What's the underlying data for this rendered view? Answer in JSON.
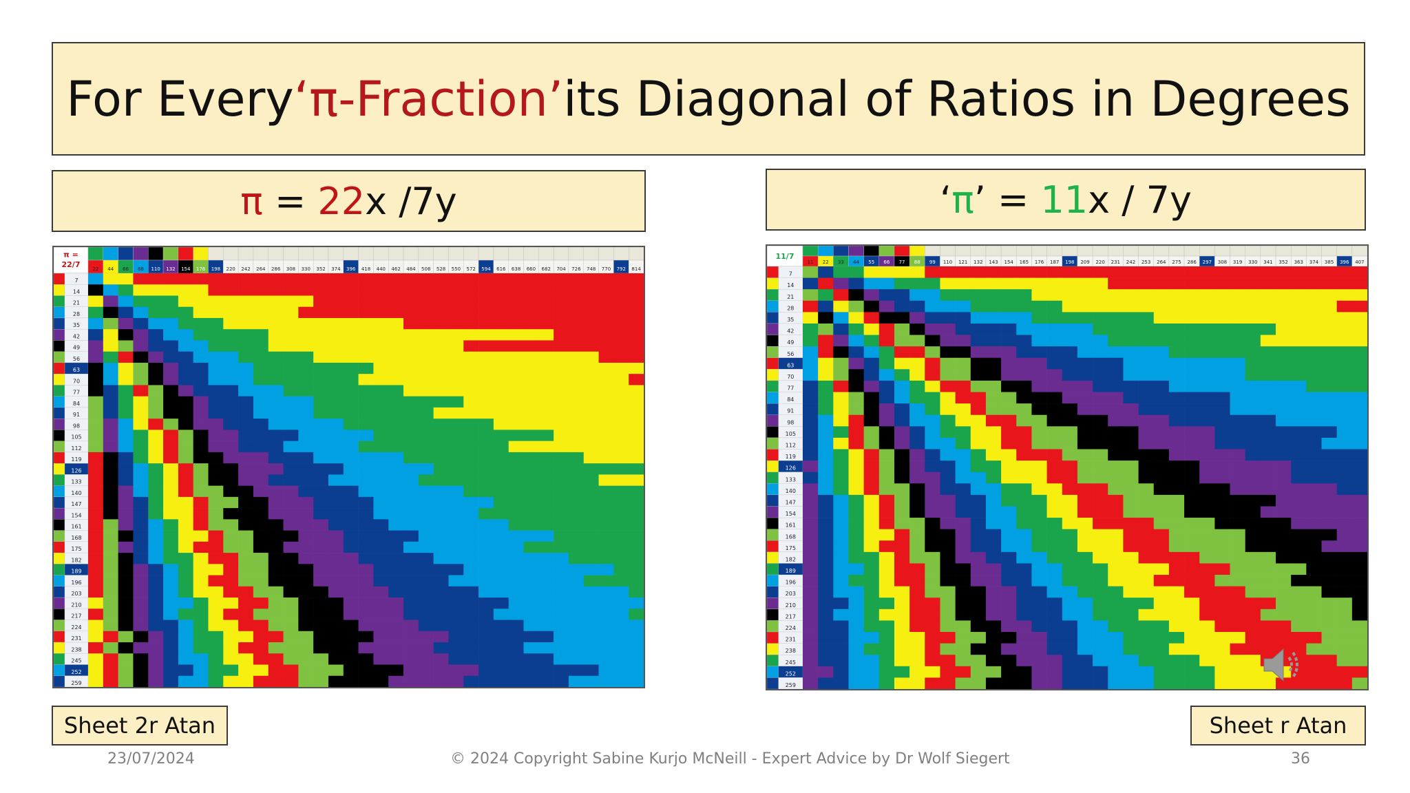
{
  "title": {
    "before": "For Every ",
    "highlight": "‘π-Fraction’",
    "after": " its Diagonal of Ratios in Degrees"
  },
  "left_panel": {
    "heading": {
      "pi": "π",
      "eq": " = ",
      "num": "22",
      "rest": "x /7y"
    },
    "sheet_label": "Sheet 2r Atan",
    "corner_top": "π =",
    "corner_bottom": "22/7",
    "top_numbers": [
      "22",
      "44",
      "66",
      "88",
      "110",
      "132",
      "154",
      "176",
      "198",
      "220",
      "242",
      "264",
      "286",
      "308",
      "330",
      "352",
      "374",
      "396",
      "418",
      "440",
      "462",
      "484",
      "506",
      "528",
      "550",
      "572",
      "594",
      "616",
      "638",
      "660",
      "682",
      "704",
      "726",
      "748",
      "770",
      "792",
      "814"
    ],
    "side_numbers": [
      "7",
      "14",
      "21",
      "28",
      "35",
      "42",
      "49",
      "56",
      "63",
      "70",
      "77",
      "84",
      "91",
      "98",
      "105",
      "112",
      "119",
      "126",
      "133",
      "140",
      "147",
      "154",
      "161",
      "168",
      "175",
      "182",
      "189",
      "196",
      "203",
      "210",
      "217",
      "224",
      "231",
      "238",
      "245",
      "252",
      "259"
    ]
  },
  "right_panel": {
    "heading": {
      "q1": "‘",
      "pi": "π",
      "q2": "’",
      "eq": " = ",
      "num": "11",
      "rest": "x / 7y"
    },
    "sheet_label": "Sheet r Atan",
    "corner_top": "11/7",
    "top_numbers": [
      "11",
      "22",
      "33",
      "44",
      "55",
      "66",
      "77",
      "88",
      "99",
      "110",
      "121",
      "132",
      "143",
      "154",
      "165",
      "176",
      "187",
      "198",
      "209",
      "220",
      "231",
      "242",
      "253",
      "264",
      "275",
      "286",
      "297",
      "308",
      "319",
      "330",
      "341",
      "352",
      "363",
      "374",
      "385",
      "396",
      "407"
    ],
    "side_numbers": [
      "7",
      "14",
      "21",
      "28",
      "35",
      "42",
      "49",
      "56",
      "63",
      "70",
      "77",
      "84",
      "91",
      "98",
      "105",
      "112",
      "119",
      "126",
      "133",
      "140",
      "147",
      "154",
      "161",
      "168",
      "175",
      "182",
      "189",
      "196",
      "203",
      "210",
      "217",
      "224",
      "231",
      "238",
      "245",
      "252",
      "259"
    ]
  },
  "footer": {
    "date": "23/07/2024",
    "copyright": "© 2024 Copyright Sabine Kurjo McNeill - Expert Advice by Dr Wolf Siegert",
    "page": "36"
  },
  "icons": {
    "speaker": "speaker-icon"
  },
  "palette": [
    "#e8151b",
    "#f7ef10",
    "#1aa54c",
    "#00a0e3",
    "#0b3d91",
    "#6a2c91",
    "#000000",
    "#7fc241",
    "#f2a31a"
  ]
}
